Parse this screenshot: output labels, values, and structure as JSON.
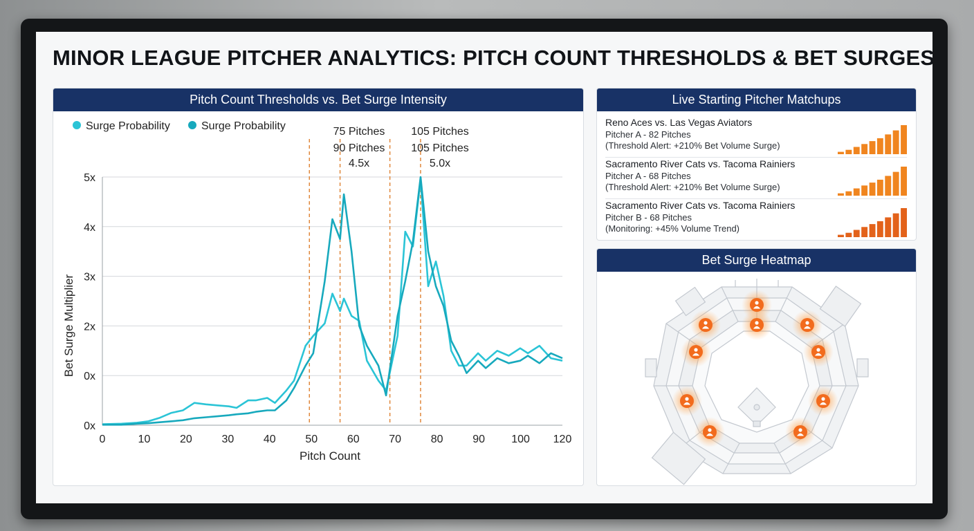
{
  "dashboard": {
    "title": "MINOR LEAGUE PITCHER ANALYTICS: PITCH COUNT THRESHOLDS & BET SURGES"
  },
  "chart_panel": {
    "header": "Pitch Count Thresholds vs. Bet Surge Intensity"
  },
  "chart_data": {
    "type": "line",
    "title": "Pitch Count Thresholds vs. Bet Surge Intensity",
    "xlabel": "Pitch Count",
    "ylabel": "Bet Surge Multiplier",
    "xlim": [
      0,
      120
    ],
    "ylim": [
      0,
      5
    ],
    "x_ticks": [
      "0",
      "10",
      "20",
      "30",
      "40",
      "50",
      "60",
      "70",
      "80",
      "90",
      "100",
      "120"
    ],
    "y_ticks": [
      "0x",
      "0x",
      "2x",
      "3x",
      "4x",
      "5x"
    ],
    "grid": true,
    "legend_position": "top-left",
    "series": [
      {
        "name": "Surge Probability",
        "color": "#2bc4d6",
        "points": [
          [
            0,
            0.02
          ],
          [
            5,
            0.03
          ],
          [
            9,
            0.05
          ],
          [
            12,
            0.08
          ],
          [
            15,
            0.15
          ],
          [
            18,
            0.25
          ],
          [
            21,
            0.3
          ],
          [
            24,
            0.45
          ],
          [
            27,
            0.42
          ],
          [
            30,
            0.4
          ],
          [
            33,
            0.38
          ],
          [
            35,
            0.35
          ],
          [
            38,
            0.5
          ],
          [
            40,
            0.5
          ],
          [
            43,
            0.55
          ],
          [
            45,
            0.45
          ],
          [
            48,
            0.7
          ],
          [
            50,
            0.9
          ],
          [
            53,
            1.6
          ],
          [
            55,
            1.8
          ],
          [
            58,
            2.05
          ],
          [
            60,
            2.65
          ],
          [
            62,
            2.3
          ],
          [
            63,
            2.55
          ],
          [
            65,
            2.2
          ],
          [
            67,
            2.1
          ],
          [
            69,
            1.3
          ],
          [
            72,
            0.9
          ],
          [
            74,
            0.7
          ],
          [
            77,
            1.8
          ],
          [
            79,
            3.9
          ],
          [
            81,
            3.6
          ],
          [
            83,
            4.95
          ],
          [
            85,
            2.8
          ],
          [
            87,
            3.3
          ],
          [
            89,
            2.6
          ],
          [
            91,
            1.5
          ],
          [
            93,
            1.2
          ],
          [
            95,
            1.2
          ],
          [
            98,
            1.45
          ],
          [
            100,
            1.3
          ],
          [
            103,
            1.5
          ],
          [
            106,
            1.4
          ],
          [
            109,
            1.55
          ],
          [
            111,
            1.45
          ],
          [
            114,
            1.6
          ],
          [
            117,
            1.35
          ],
          [
            120,
            1.3
          ]
        ]
      },
      {
        "name": "Surge Probability",
        "color": "#17a9bd",
        "points": [
          [
            0,
            0.01
          ],
          [
            5,
            0.01
          ],
          [
            9,
            0.03
          ],
          [
            12,
            0.04
          ],
          [
            15,
            0.06
          ],
          [
            18,
            0.08
          ],
          [
            21,
            0.1
          ],
          [
            24,
            0.14
          ],
          [
            27,
            0.16
          ],
          [
            30,
            0.18
          ],
          [
            33,
            0.2
          ],
          [
            35,
            0.22
          ],
          [
            38,
            0.24
          ],
          [
            40,
            0.27
          ],
          [
            43,
            0.3
          ],
          [
            45,
            0.3
          ],
          [
            48,
            0.5
          ],
          [
            50,
            0.75
          ],
          [
            53,
            1.2
          ],
          [
            55,
            1.45
          ],
          [
            58,
            2.9
          ],
          [
            60,
            4.15
          ],
          [
            62,
            3.75
          ],
          [
            63,
            4.65
          ],
          [
            65,
            3.5
          ],
          [
            67,
            2.0
          ],
          [
            69,
            1.6
          ],
          [
            72,
            1.2
          ],
          [
            74,
            0.6
          ],
          [
            77,
            2.2
          ],
          [
            79,
            2.9
          ],
          [
            81,
            3.7
          ],
          [
            83,
            5.0
          ],
          [
            85,
            3.5
          ],
          [
            87,
            2.8
          ],
          [
            89,
            2.4
          ],
          [
            91,
            1.7
          ],
          [
            93,
            1.4
          ],
          [
            95,
            1.05
          ],
          [
            98,
            1.3
          ],
          [
            100,
            1.15
          ],
          [
            103,
            1.35
          ],
          [
            106,
            1.25
          ],
          [
            109,
            1.3
          ],
          [
            111,
            1.4
          ],
          [
            114,
            1.25
          ],
          [
            117,
            1.45
          ],
          [
            120,
            1.35
          ]
        ]
      }
    ],
    "annotations": [
      {
        "x": 54,
        "label": "75 Pitches",
        "sublabel": ""
      },
      {
        "x": 62,
        "label": "90 Pitches",
        "sublabel": "4.5x"
      },
      {
        "x": 75,
        "label": "105 Pitches",
        "sublabel": ""
      },
      {
        "x": 83,
        "label": "105 Pitches",
        "sublabel": "5.0x"
      }
    ]
  },
  "legend": [
    {
      "label": "Surge Probability",
      "color": "#2bc4d6"
    },
    {
      "label": "Surge Probability",
      "color": "#17a9bd"
    }
  ],
  "matchups": {
    "header": "Live Starting Pitcher Matchups",
    "items": [
      {
        "title": "Reno Aces vs. Las Vegas Aviators",
        "line1": "Pitcher A - 82 Pitches",
        "line2": "(Threshold Alert: +210% Bet Volume Surge)",
        "trend": [
          0.08,
          0.15,
          0.25,
          0.35,
          0.45,
          0.55,
          0.68,
          0.82,
          1.0
        ],
        "color": "#f0851f"
      },
      {
        "title": "Sacramento River Cats vs. Tacoma Rainiers",
        "line1": "Pitcher A - 68 Pitches",
        "line2": "(Threshold Alert: +210% Bet Volume Surge)",
        "trend": [
          0.08,
          0.15,
          0.25,
          0.35,
          0.45,
          0.55,
          0.68,
          0.82,
          1.0
        ],
        "color": "#f0851f"
      },
      {
        "title": "Sacramento River Cats vs. Tacoma Rainiers",
        "line1": "Pitcher B - 68 Pitches",
        "line2": "(Monitoring: +45% Volume Trend)",
        "trend": [
          0.08,
          0.15,
          0.25,
          0.35,
          0.45,
          0.55,
          0.68,
          0.82,
          1.0
        ],
        "color": "#e3621a"
      }
    ]
  },
  "heatmap": {
    "header": "Bet Surge Heatmap",
    "hotspot_icon": "person-icon",
    "hotspot_color": "#f26b1d",
    "hotspot_count": 10
  }
}
